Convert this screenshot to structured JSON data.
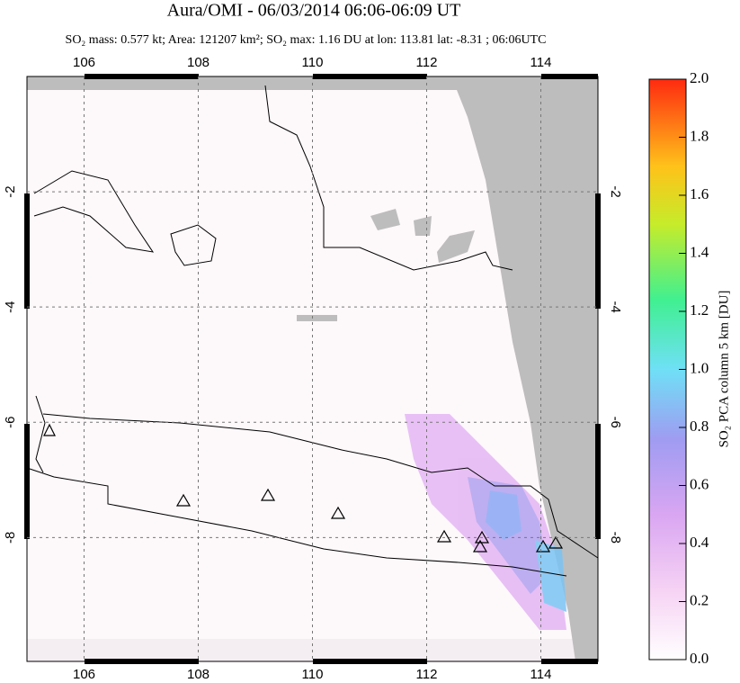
{
  "chart_data": {
    "type": "map",
    "title": "Aura/OMI - 06/03/2014 06:06-06:09 UT",
    "subtitle": "SO₂ mass: 0.577 kt; Area: 121207 km²; SO₂ max: 1.16 DU at lon: 113.81 lat: -8.31 ; 06:06UTC",
    "xlim": [
      105,
      115
    ],
    "xticks": [
      106,
      108,
      110,
      112,
      114
    ],
    "ylim": [
      -10.15,
      0
    ],
    "yticks": [
      -2,
      -4,
      -6,
      -8
    ],
    "grid": true,
    "colorbar_label": "SO₂ PCA column 5 km [DU]",
    "colorbar_lim": [
      0,
      2
    ],
    "colorbar_ticks": [
      {
        "value": 0,
        "label": "0.0"
      },
      {
        "value": 0.2,
        "label": "0.2"
      },
      {
        "value": 0.4,
        "label": "0.4"
      },
      {
        "value": 0.6,
        "label": "0.6"
      },
      {
        "value": 0.8,
        "label": "0.8"
      },
      {
        "value": 1.0,
        "label": "1.0"
      },
      {
        "value": 1.2,
        "label": "1.2"
      },
      {
        "value": 1.4,
        "label": "1.4"
      },
      {
        "value": 1.6,
        "label": "1.6"
      },
      {
        "value": 1.8,
        "label": "1.8"
      },
      {
        "value": 2.0,
        "label": "2.0"
      }
    ]
  }
}
